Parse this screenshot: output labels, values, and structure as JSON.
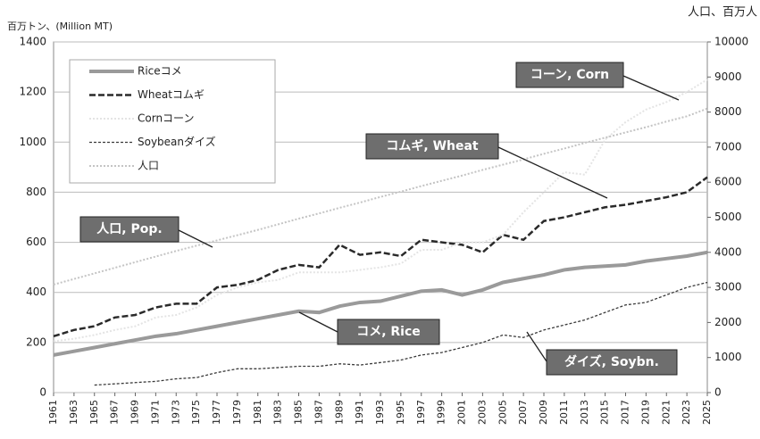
{
  "chart_data": {
    "type": "line",
    "ylabel": "百万トン、(Million MT)",
    "y2label": "人口、百万人",
    "x": [
      1961,
      1963,
      1965,
      1967,
      1969,
      1971,
      1973,
      1975,
      1977,
      1979,
      1981,
      1983,
      1985,
      1987,
      1989,
      1991,
      1993,
      1995,
      1997,
      1999,
      2001,
      2003,
      2005,
      2007,
      2009,
      2011,
      2013,
      2015,
      2017,
      2019,
      2021,
      2023,
      2025
    ],
    "xlim": [
      1961,
      2025
    ],
    "xticks": [
      1961,
      1963,
      1965,
      1967,
      1969,
      1971,
      1973,
      1975,
      1977,
      1979,
      1981,
      1983,
      1985,
      1987,
      1989,
      1991,
      1993,
      1995,
      1997,
      1999,
      2001,
      2003,
      2005,
      2007,
      2009,
      2011,
      2013,
      2015,
      2017,
      2019,
      2021,
      2023,
      2025
    ],
    "ylim": [
      0,
      1400
    ],
    "yticks": [
      0,
      200,
      400,
      600,
      800,
      1000,
      1200,
      1400
    ],
    "y2lim": [
      0,
      10000
    ],
    "y2ticks": [
      0,
      1000,
      2000,
      3000,
      4000,
      5000,
      6000,
      7000,
      8000,
      9000,
      10000
    ],
    "grid": true,
    "legend": "upper left",
    "series": [
      {
        "name": "Riceコメ",
        "color": "#9a9a9a",
        "values": [
          150,
          165,
          180,
          195,
          210,
          225,
          235,
          250,
          265,
          280,
          295,
          310,
          325,
          320,
          345,
          360,
          365,
          385,
          405,
          410,
          390,
          410,
          440,
          455,
          470,
          490,
          500,
          505,
          510,
          525,
          535,
          545,
          560
        ]
      },
      {
        "name": "Wheatコムギ",
        "color": "#2a2a2a",
        "values": [
          225,
          250,
          265,
          300,
          310,
          340,
          355,
          355,
          420,
          430,
          450,
          490,
          510,
          500,
          590,
          550,
          560,
          545,
          610,
          600,
          590,
          560,
          630,
          610,
          685,
          700,
          720,
          740,
          750,
          765,
          780,
          800,
          860
        ]
      },
      {
        "name": "Cornコーン",
        "color": "#e4e4e4",
        "values": [
          205,
          215,
          230,
          250,
          265,
          300,
          310,
          340,
          390,
          420,
          440,
          450,
          480,
          480,
          480,
          490,
          500,
          515,
          570,
          570,
          600,
          600,
          630,
          720,
          800,
          880,
          870,
          1010,
          1080,
          1130,
          1160,
          1200,
          1250
        ]
      },
      {
        "name": "Soybeanダイズ",
        "color": "#3a3a3a",
        "values": [
          null,
          null,
          30,
          35,
          40,
          45,
          55,
          60,
          80,
          95,
          95,
          100,
          105,
          105,
          115,
          110,
          120,
          130,
          150,
          160,
          180,
          200,
          230,
          220,
          250,
          270,
          290,
          320,
          350,
          360,
          390,
          420,
          440
        ]
      },
      {
        "name": "人口",
        "color": "#c4c4c4",
        "axis": "y2",
        "values": [
          3080,
          3240,
          3400,
          3560,
          3720,
          3880,
          4040,
          4190,
          4340,
          4490,
          4640,
          4800,
          4960,
          5110,
          5270,
          5420,
          5580,
          5730,
          5890,
          6040,
          6190,
          6350,
          6500,
          6650,
          6810,
          6960,
          7120,
          7270,
          7420,
          7570,
          7730,
          7880,
          8100
        ]
      }
    ],
    "annotations": [
      "コーン, Corn",
      "コムギ, Wheat",
      "人口, Pop.",
      "コメ, Rice",
      "ダイズ, Soybn."
    ]
  }
}
